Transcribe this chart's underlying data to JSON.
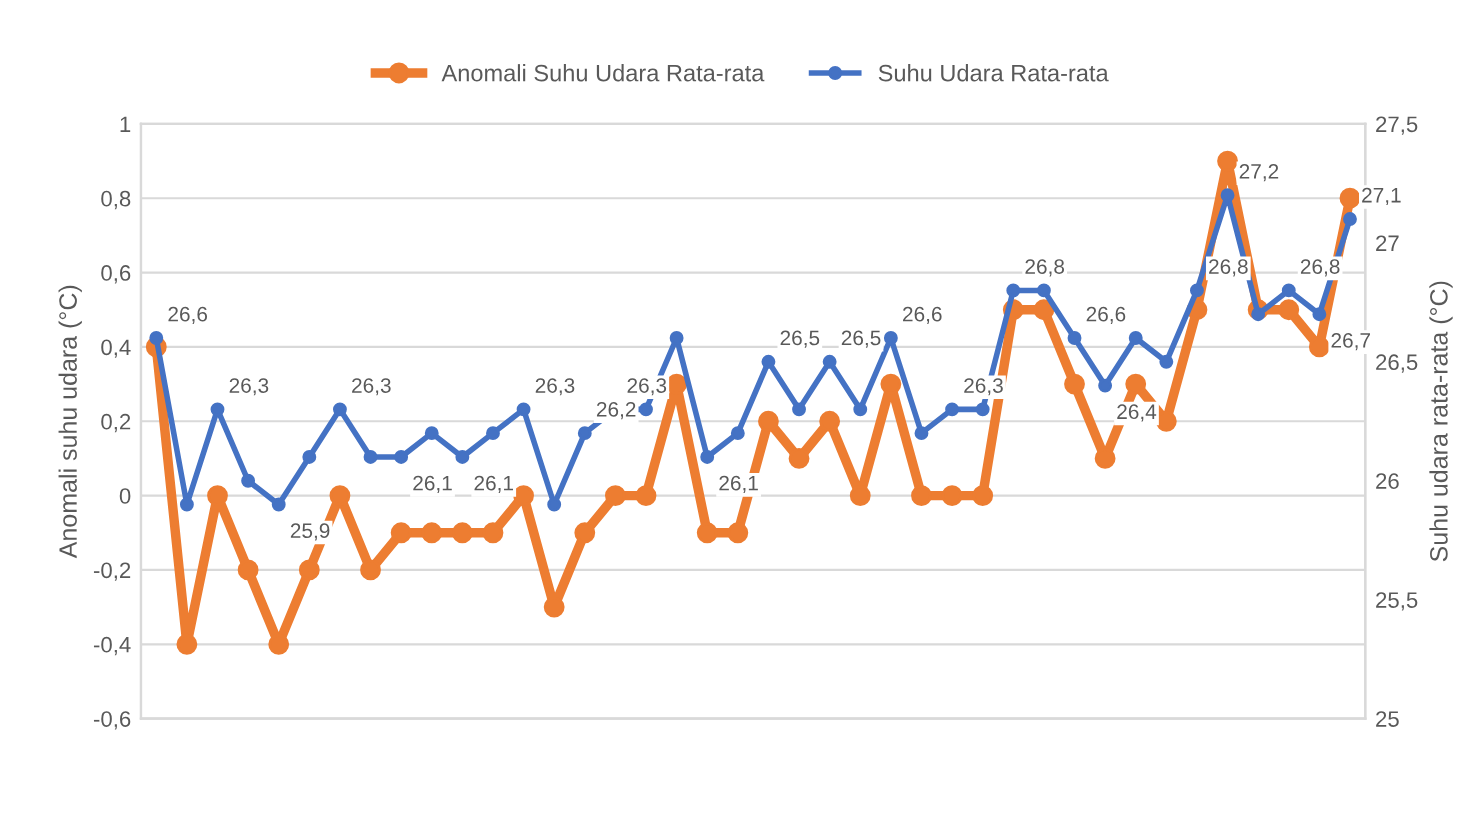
{
  "chart_data": {
    "type": "line",
    "ylabel": "Anomali suhu udara (°C)",
    "y2label": "Suhu udara rata-rata (°C)",
    "categories": [
      null,
      null,
      null,
      null,
      null,
      null,
      null,
      null,
      null,
      null,
      null,
      null,
      null,
      null,
      null,
      null,
      null,
      null,
      null,
      null,
      null,
      null,
      null,
      null,
      null,
      null,
      null,
      null,
      null,
      null,
      null,
      null,
      null,
      null,
      null,
      null,
      null,
      null,
      null,
      null
    ],
    "series": [
      {
        "name": "Anomali Suhu Udara Rata-rata",
        "color": "#ed7d31",
        "values": [
          0.4,
          -0.4,
          0,
          -0.2,
          -0.4,
          -0.2,
          0,
          -0.2,
          -0.1,
          -0.1,
          -0.1,
          -0.1,
          0,
          -0.3,
          -0.1,
          0,
          0,
          0.3,
          -0.1,
          -0.1,
          0.2,
          0.1,
          0.2,
          0,
          0.3,
          0,
          0,
          0,
          0.5,
          0.5,
          0.3,
          0.1,
          0.3,
          0.2,
          0.5,
          0.9,
          0.5,
          0.5,
          0.4,
          0.8
        ]
      },
      {
        "name": "Suhu Udara Rata-rata",
        "color": "#4472c4",
        "axis": "y2",
        "values": [
          26.6,
          25.9,
          26.3,
          26.0,
          25.9,
          26.1,
          26.3,
          26.1,
          26.1,
          26.2,
          26.1,
          26.2,
          26.3,
          25.9,
          26.2,
          26.3,
          26.3,
          26.6,
          26.1,
          26.2,
          26.5,
          26.3,
          26.5,
          26.3,
          26.6,
          26.2,
          26.3,
          26.3,
          26.8,
          26.8,
          26.6,
          26.4,
          26.6,
          26.5,
          26.8,
          27.2,
          26.7,
          26.8,
          26.7,
          27.1
        ],
        "value_labels": [
          "26,6",
          null,
          "26,3",
          null,
          "25,9",
          null,
          "26,3",
          null,
          "26,1",
          null,
          "26,1",
          null,
          "26,3",
          null,
          "26,2",
          "26,3",
          null,
          null,
          "26,1",
          null,
          "26,5",
          null,
          "26,5",
          null,
          "26,6",
          null,
          "26,3",
          null,
          "26,8",
          null,
          "26,6",
          "26,4",
          null,
          null,
          "26,8",
          "27,2",
          null,
          "26,8",
          "26,7",
          "27,1"
        ]
      }
    ],
    "ylim": [
      -0.6,
      1
    ],
    "yticks": [
      {
        "value": -0.6,
        "label": "-0,6"
      },
      {
        "value": -0.4,
        "label": "-0,4"
      },
      {
        "value": -0.2,
        "label": "-0,2"
      },
      0,
      {
        "value": 0.2,
        "label": "0,2"
      },
      {
        "value": 0.4,
        "label": "0,4"
      },
      {
        "value": 0.6,
        "label": "0,6"
      },
      {
        "value": 0.8,
        "label": "0,8"
      },
      1
    ],
    "y2lim": [
      25,
      27.5
    ],
    "y2ticks": [
      25,
      {
        "value": 25.5,
        "label": "25,5"
      },
      26,
      {
        "value": 26.5,
        "label": "26,5"
      },
      27,
      {
        "value": 27.5,
        "label": "27,5"
      }
    ],
    "grid": "y",
    "legend": "top",
    "marker": "circle",
    "line_style": "solid"
  }
}
